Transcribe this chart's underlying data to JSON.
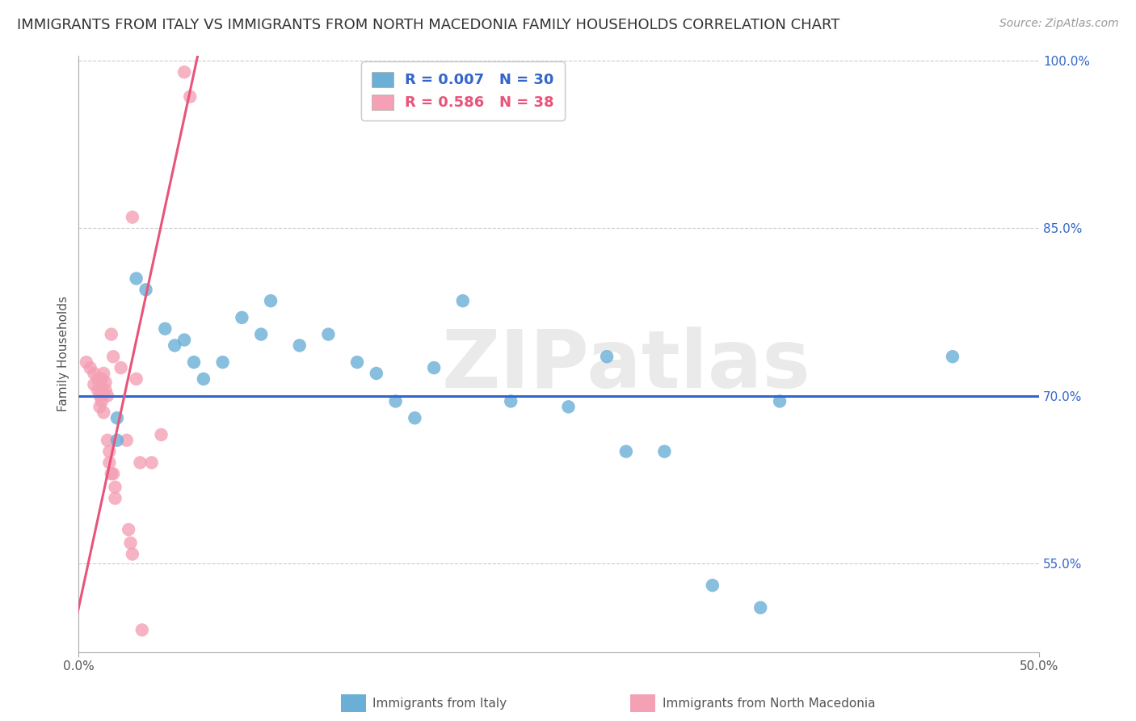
{
  "title": "IMMIGRANTS FROM ITALY VS IMMIGRANTS FROM NORTH MACEDONIA FAMILY HOUSEHOLDS CORRELATION CHART",
  "source": "Source: ZipAtlas.com",
  "xlabel_bottom": "Immigrants from Italy",
  "xlabel_bottom2": "Immigrants from North Macedonia",
  "ylabel": "Family Households",
  "watermark": "ZIPatlas",
  "xlim": [
    0.0,
    0.5
  ],
  "ylim": [
    0.47,
    1.005
  ],
  "legend_blue_r": "R = 0.007",
  "legend_blue_n": "N = 30",
  "legend_pink_r": "R = 0.586",
  "legend_pink_n": "N = 38",
  "blue_color": "#6baed6",
  "pink_color": "#f4a0b5",
  "blue_line_color": "#3366cc",
  "pink_line_color": "#e8547a",
  "blue_scatter": [
    [
      0.02,
      0.68
    ],
    [
      0.02,
      0.66
    ],
    [
      0.03,
      0.805
    ],
    [
      0.035,
      0.795
    ],
    [
      0.045,
      0.76
    ],
    [
      0.05,
      0.745
    ],
    [
      0.055,
      0.75
    ],
    [
      0.06,
      0.73
    ],
    [
      0.065,
      0.715
    ],
    [
      0.075,
      0.73
    ],
    [
      0.085,
      0.77
    ],
    [
      0.095,
      0.755
    ],
    [
      0.1,
      0.785
    ],
    [
      0.115,
      0.745
    ],
    [
      0.13,
      0.755
    ],
    [
      0.145,
      0.73
    ],
    [
      0.155,
      0.72
    ],
    [
      0.165,
      0.695
    ],
    [
      0.175,
      0.68
    ],
    [
      0.185,
      0.725
    ],
    [
      0.2,
      0.785
    ],
    [
      0.225,
      0.695
    ],
    [
      0.255,
      0.69
    ],
    [
      0.275,
      0.735
    ],
    [
      0.285,
      0.65
    ],
    [
      0.305,
      0.65
    ],
    [
      0.33,
      0.53
    ],
    [
      0.355,
      0.51
    ],
    [
      0.365,
      0.695
    ],
    [
      0.455,
      0.735
    ]
  ],
  "pink_scatter": [
    [
      0.004,
      0.73
    ],
    [
      0.006,
      0.725
    ],
    [
      0.008,
      0.72
    ],
    [
      0.008,
      0.71
    ],
    [
      0.01,
      0.715
    ],
    [
      0.01,
      0.705
    ],
    [
      0.011,
      0.7
    ],
    [
      0.011,
      0.69
    ],
    [
      0.012,
      0.715
    ],
    [
      0.012,
      0.705
    ],
    [
      0.012,
      0.695
    ],
    [
      0.013,
      0.685
    ],
    [
      0.013,
      0.72
    ],
    [
      0.014,
      0.712
    ],
    [
      0.014,
      0.705
    ],
    [
      0.015,
      0.7
    ],
    [
      0.015,
      0.66
    ],
    [
      0.016,
      0.65
    ],
    [
      0.016,
      0.64
    ],
    [
      0.017,
      0.63
    ],
    [
      0.017,
      0.755
    ],
    [
      0.018,
      0.735
    ],
    [
      0.018,
      0.63
    ],
    [
      0.019,
      0.618
    ],
    [
      0.019,
      0.608
    ],
    [
      0.022,
      0.725
    ],
    [
      0.025,
      0.66
    ],
    [
      0.026,
      0.58
    ],
    [
      0.027,
      0.568
    ],
    [
      0.028,
      0.558
    ],
    [
      0.028,
      0.86
    ],
    [
      0.03,
      0.715
    ],
    [
      0.032,
      0.64
    ],
    [
      0.033,
      0.49
    ],
    [
      0.038,
      0.64
    ],
    [
      0.043,
      0.665
    ],
    [
      0.055,
      0.99
    ],
    [
      0.058,
      0.968
    ]
  ],
  "blue_trendline": [
    0.0,
    0.7,
    0.5,
    0.7
  ],
  "pink_trendline": [
    -0.005,
    0.47,
    0.062,
    1.005
  ],
  "background_color": "#ffffff",
  "grid_color": "#cccccc",
  "ytick_positions": [
    0.55,
    0.7,
    0.85,
    1.0
  ],
  "ytick_labels": [
    "55.0%",
    "70.0%",
    "85.0%",
    "100.0%"
  ],
  "xtick_positions": [
    0.0,
    0.5
  ],
  "xtick_labels": [
    "0.0%",
    "50.0%"
  ],
  "title_fontsize": 13,
  "source_fontsize": 10,
  "legend_fontsize": 13
}
